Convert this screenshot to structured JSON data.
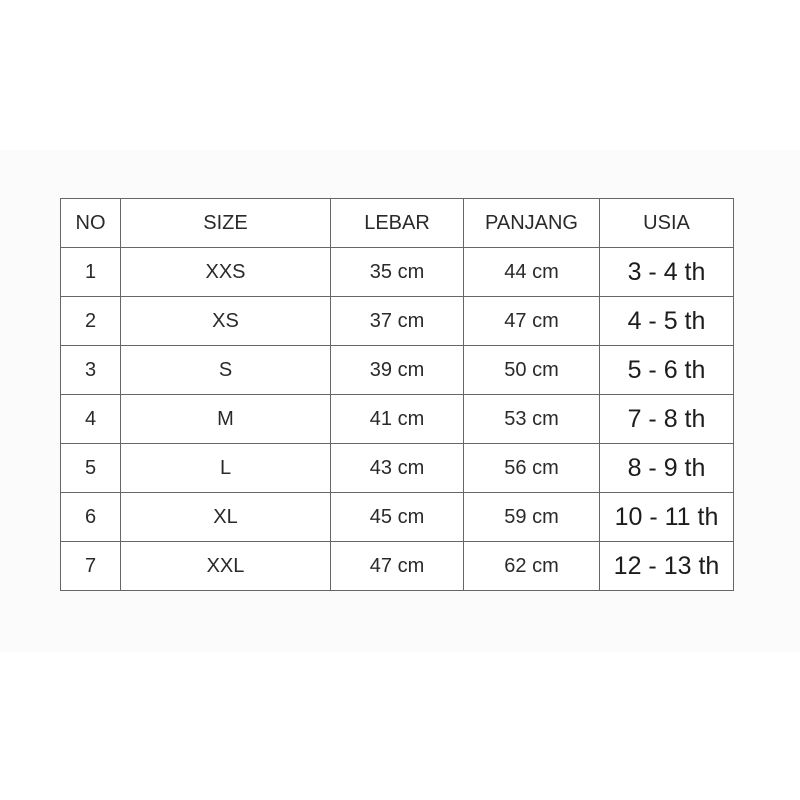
{
  "table": {
    "headers": [
      "NO",
      "SIZE",
      "LEBAR",
      "PANJANG",
      "USIA"
    ],
    "rows": [
      [
        "1",
        "XXS",
        "35 cm",
        "44 cm",
        "3 - 4 th"
      ],
      [
        "2",
        "XS",
        "37 cm",
        "47 cm",
        "4 - 5 th"
      ],
      [
        "3",
        "S",
        "39 cm",
        "50 cm",
        "5 - 6 th"
      ],
      [
        "4",
        "M",
        "41 cm",
        "53 cm",
        "7 - 8 th"
      ],
      [
        "5",
        "L",
        "43 cm",
        "56 cm",
        "8 - 9 th"
      ],
      [
        "6",
        "XL",
        "45 cm",
        "59 cm",
        "10 - 11 th"
      ],
      [
        "7",
        "XXL",
        "47 cm",
        "62 cm",
        "12 - 13 th"
      ]
    ]
  }
}
